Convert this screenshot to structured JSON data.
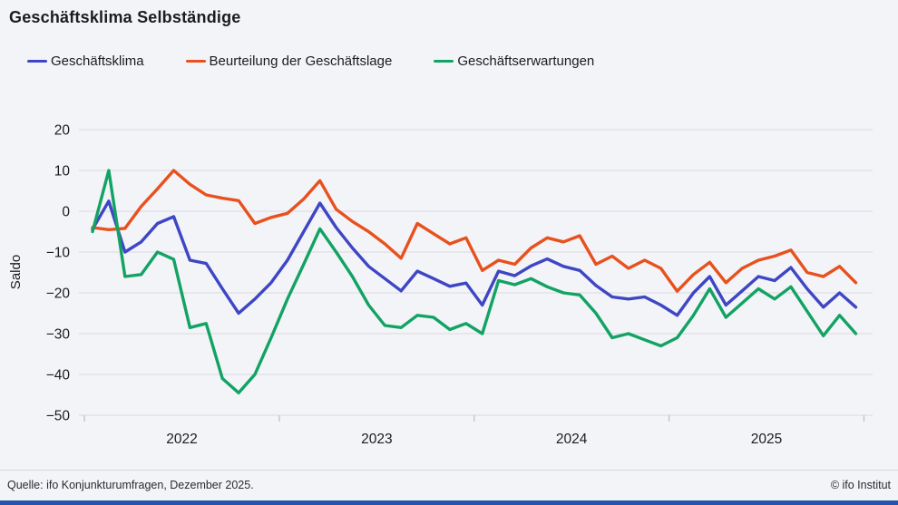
{
  "title": "Geschäftsklima Selbständige",
  "legend": {
    "items": [
      {
        "label": "Geschäftsklima",
        "color": "#3e46c4"
      },
      {
        "label": "Beurteilung der Geschäftslage",
        "color": "#e8511d"
      },
      {
        "label": "Geschäftserwartungen",
        "color": "#12a364"
      }
    ]
  },
  "footer": {
    "source": "Quelle: ifo Konjunkturumfragen,  Dezember 2025.",
    "copyright": "© ifo Institut"
  },
  "colors": {
    "background": "#f3f4f8",
    "gridline": "#d8d9df",
    "axis_tick": "#c3c4cb",
    "text": "#1b1c20",
    "bottom_bar": "#2356a8"
  },
  "chart_data": {
    "type": "line",
    "title": "Geschäftsklima Selbständige",
    "xlabel": "",
    "ylabel": "Saldo",
    "ylim": [
      -50,
      20
    ],
    "y_tick_labels": [
      "20",
      "10",
      "0",
      "−10",
      "−20",
      "−30",
      "−40",
      "−50"
    ],
    "y_tick_values": [
      20,
      10,
      0,
      -10,
      -20,
      -30,
      -40,
      -50
    ],
    "x_year_labels": [
      "2022",
      "2023",
      "2024",
      "2025"
    ],
    "x_unit": "month",
    "x_start": "2022-01",
    "x_end": "2025-12",
    "grid": "horizontal",
    "legend_position": "top",
    "series": [
      {
        "name": "Geschäftsklima",
        "color": "#3e46c4",
        "values": [
          -4.4,
          2.5,
          -10,
          -7.5,
          -3,
          -1.3,
          -12,
          -12.8,
          -19,
          -25,
          -21.5,
          -17.5,
          -12,
          -5,
          2,
          -4,
          -9,
          -13.5,
          -16.5,
          -19.5,
          -14.7,
          -16.5,
          -18.4,
          -17.6,
          -23,
          -14.7,
          -15.8,
          -13.4,
          -11.7,
          -13.5,
          -14.5,
          -18.2,
          -21,
          -21.5,
          -21,
          -23,
          -25.5,
          -20,
          -16,
          -23,
          -19.5,
          -16,
          -17,
          -13.8,
          -19,
          -23.5,
          -20,
          -23.5
        ]
      },
      {
        "name": "Beurteilung der Geschäftslage",
        "color": "#e8511d",
        "values": [
          -4,
          -4.5,
          -4.2,
          1.2,
          5.5,
          10,
          6.6,
          4,
          3.2,
          2.6,
          -3,
          -1.5,
          -0.5,
          3,
          7.5,
          0.5,
          -2.5,
          -5,
          -8,
          -11.5,
          -3,
          -5.5,
          -8,
          -6.5,
          -14.5,
          -12,
          -13,
          -9,
          -6.5,
          -7.5,
          -6,
          -13,
          -11,
          -14,
          -12,
          -14,
          -19.6,
          -15.5,
          -12.5,
          -17.5,
          -14,
          -12,
          -11,
          -9.5,
          -15,
          -16,
          -13.5,
          -17.5
        ]
      },
      {
        "name": "Geschäftserwartungen",
        "color": "#12a364",
        "values": [
          -5,
          10,
          -16,
          -15.5,
          -10,
          -11.8,
          -28.5,
          -27.5,
          -41,
          -44.5,
          -40,
          -31,
          -21.5,
          -13,
          -4.3,
          -10,
          -16,
          -23,
          -28,
          -28.5,
          -25.5,
          -26,
          -29,
          -27.5,
          -30,
          -17,
          -18,
          -16.5,
          -18.5,
          -20,
          -20.5,
          -25,
          -31,
          -30,
          -31.5,
          -33,
          -31,
          -25.5,
          -19,
          -26,
          -22.5,
          -19,
          -21.5,
          -18.5,
          -24.5,
          -30.5,
          -25.5,
          -30
        ]
      }
    ]
  }
}
